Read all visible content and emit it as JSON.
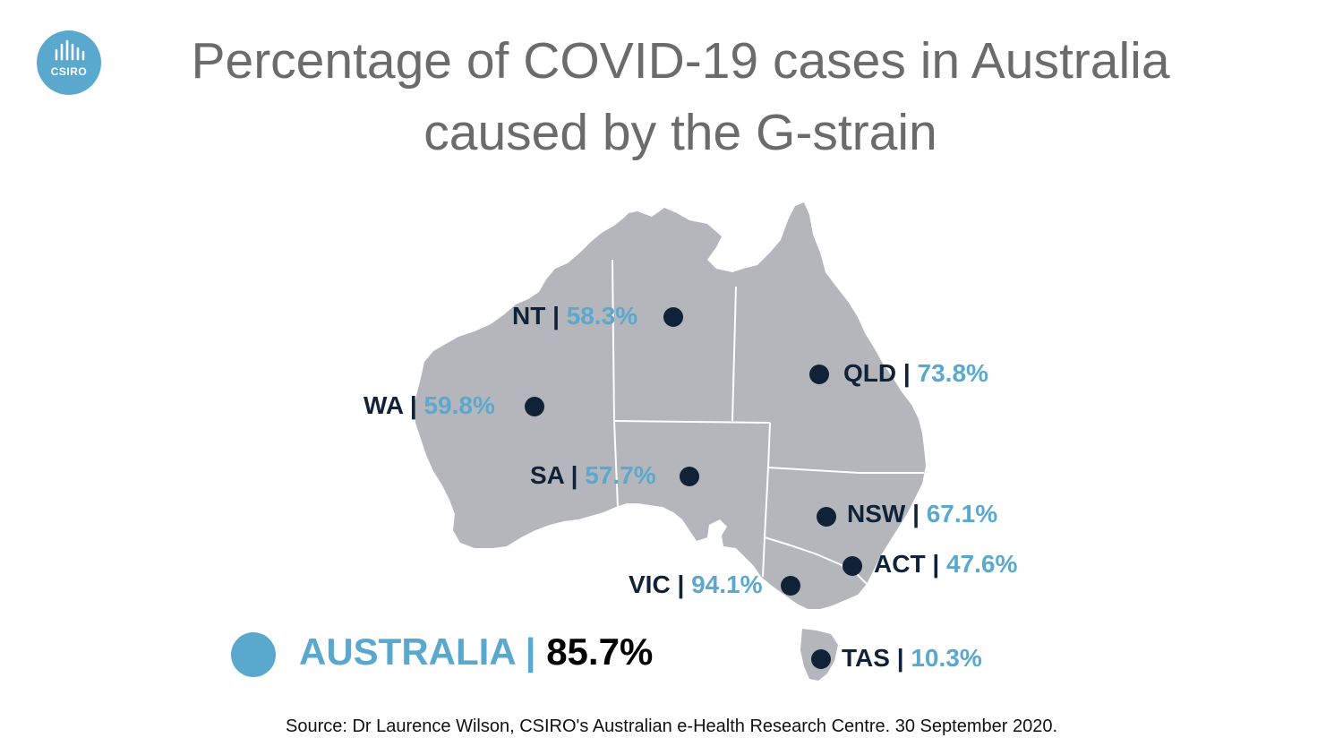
{
  "title": [
    "Percentage of COVID-19 cases in Australia",
    "caused by the G-strain"
  ],
  "logo": {
    "name": "csiro-logo",
    "text": "CSIRO",
    "color": "#5ba8cf"
  },
  "colors": {
    "land": "#b4b6bb",
    "border": "#ffffff",
    "dot": "#0f2238",
    "accent": "#5ba8cf",
    "title": "#6b6b6b"
  },
  "separator": "|",
  "regions": [
    {
      "code": "NT",
      "value": "58.3%"
    },
    {
      "code": "QLD",
      "value": "73.8%"
    },
    {
      "code": "WA",
      "value": "59.8%"
    },
    {
      "code": "SA",
      "value": "57.7%"
    },
    {
      "code": "NSW",
      "value": "67.1%"
    },
    {
      "code": "ACT",
      "value": "47.6%"
    },
    {
      "code": "VIC",
      "value": "94.1%"
    },
    {
      "code": "TAS",
      "value": "10.3%"
    }
  ],
  "national": {
    "name": "AUSTRALIA",
    "value": "85.7%"
  },
  "source": "Source: Dr Laurence Wilson, CSIRO's Australian e-Health Research Centre. 30 September 2020."
}
